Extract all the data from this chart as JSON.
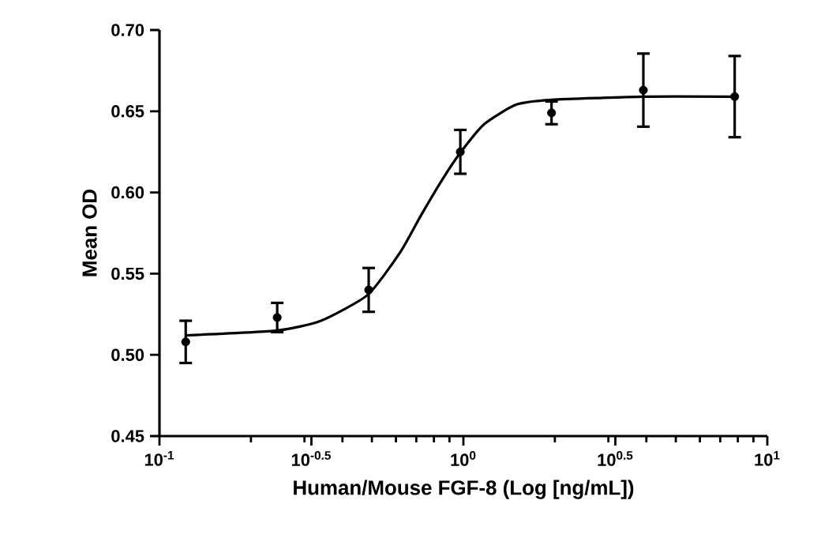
{
  "chart_data": {
    "type": "scatter",
    "xlabel": "Human/Mouse FGF-8 (Log [ng/mL])",
    "ylabel": "Mean OD",
    "log": "x",
    "xlim": [
      0.1,
      10
    ],
    "ylim": [
      0.45,
      0.7
    ],
    "xticks": [
      {
        "value": 0.1,
        "label": "10$^{-1}$"
      },
      {
        "value": 0.3162,
        "label": "10$^{-0.5}$"
      },
      {
        "value": 1,
        "label": "10$^{0}$"
      },
      {
        "value": 3.162,
        "label": "10$^{0.5}$"
      },
      {
        "value": 10,
        "label": "10$^{1}$"
      }
    ],
    "yticks": [
      0.45,
      {
        "value": 0.5,
        "label": "0.50"
      },
      0.55,
      {
        "value": 0.6,
        "label": "0.60"
      },
      0.65,
      {
        "value": 0.7,
        "label": "0.70"
      }
    ],
    "grid": false,
    "series": [
      {
        "color": "#000000",
        "marker": "circle",
        "x": [
          0.122,
          0.244,
          0.488,
          0.977,
          1.95,
          3.91,
          7.81
        ],
        "values": [
          0.508,
          0.523,
          0.54,
          0.625,
          0.649,
          0.663,
          0.659
        ],
        "errors": [
          0.013,
          0.009,
          0.0135,
          0.0135,
          0.007,
          0.0225,
          0.025
        ]
      },
      {
        "type": "line",
        "color": "#000000",
        "marker": "none",
        "x": [
          0.1216,
          0.244,
          0.34,
          0.485,
          0.619,
          0.726,
          0.853,
          0.973,
          1.17,
          1.49,
          1.95,
          3.92,
          7.83
        ],
        "values": [
          0.512,
          0.515,
          0.521,
          0.537,
          0.563,
          0.586,
          0.608,
          0.624,
          0.642,
          0.654,
          0.657,
          0.659,
          0.659
        ]
      }
    ]
  }
}
